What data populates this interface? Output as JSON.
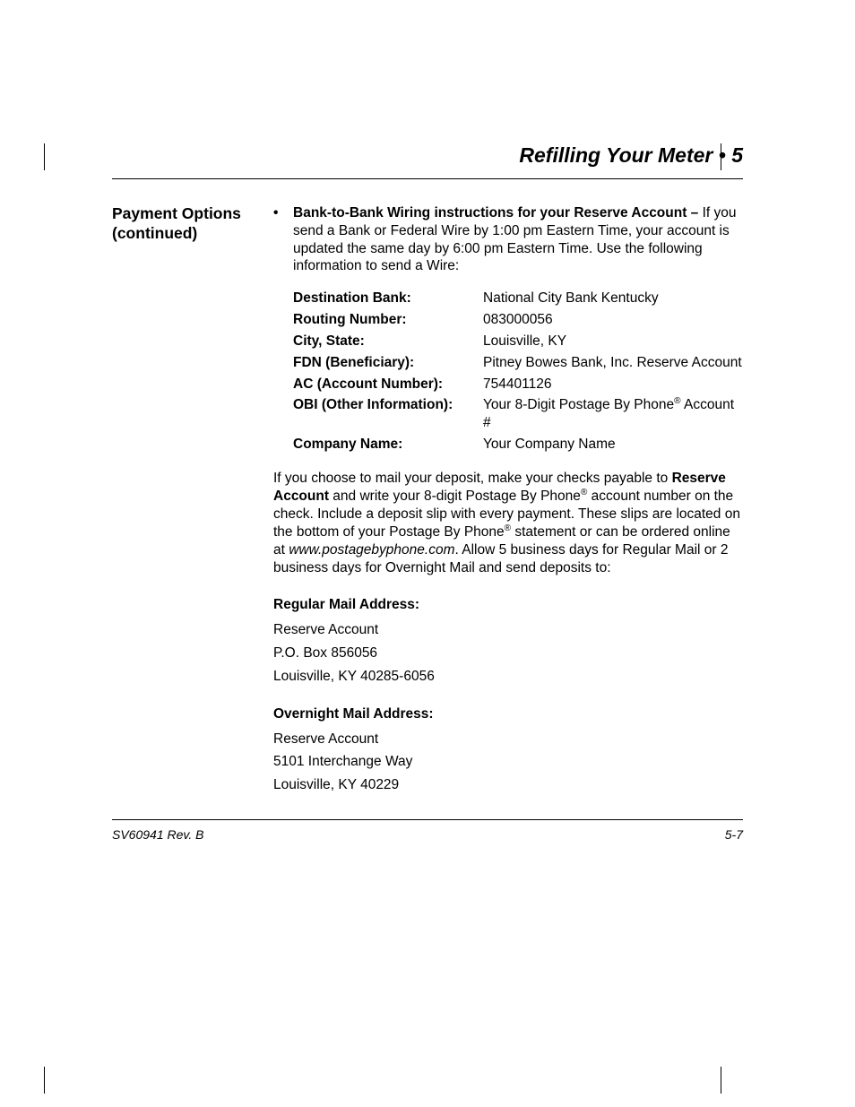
{
  "chapter": {
    "title": "Refilling Your Meter • 5"
  },
  "sidebar": {
    "line1": "Payment Options",
    "line2": "(continued)"
  },
  "bullet": {
    "marker": "•",
    "lead_bold": "Bank-to-Bank Wiring instructions for your Reserve Account – ",
    "lead_rest": "If you send a Bank or Federal Wire by 1:00 pm Eastern Time, your account is updated the same day by 6:00 pm Eastern Time. Use the following information to send a Wire:"
  },
  "wire": {
    "rows": [
      {
        "label": "Destination Bank:",
        "value": "National City Bank Kentucky"
      },
      {
        "label": "Routing Number:",
        "value": "083000056"
      },
      {
        "label": "City, State:",
        "value": "Louisville, KY"
      },
      {
        "label": "FDN (Beneficiary):",
        "value": "Pitney Bowes Bank, Inc. Reserve Account"
      },
      {
        "label": "AC (Account Number):",
        "value": "754401126"
      },
      {
        "label": "OBI (Other Information):",
        "value_pre": "Your 8-Digit Postage By Phone",
        "value_post": " Account #"
      },
      {
        "label": "Company Name:",
        "value": "Your Company Name"
      }
    ]
  },
  "mail_para": {
    "p1": "If you choose to mail your deposit, make your checks payable to ",
    "bold1": "Reserve Account",
    "p2": " and write your 8-digit Postage By Phone",
    "p3": " account number on the check. Include a deposit slip with every payment. These slips are located on the bottom of your Postage By Phone",
    "p4": " statement or can be ordered online at ",
    "italic1": "www.postagebyphone.com",
    "p5": ". Allow 5 business days for Regular Mail or 2 business days for Overnight Mail and send deposits to:"
  },
  "regular_mail": {
    "heading": "Regular Mail Address:",
    "line1": "Reserve Account",
    "line2": "P.O. Box 856056",
    "line3": "Louisville, KY 40285-6056"
  },
  "overnight_mail": {
    "heading": "Overnight Mail Address:",
    "line1": "Reserve Account",
    "line2": "5101 Interchange Way",
    "line3": "Louisville, KY 40229"
  },
  "footer": {
    "left": "SV60941 Rev. B",
    "right": "5-7"
  },
  "reg_mark": "®"
}
